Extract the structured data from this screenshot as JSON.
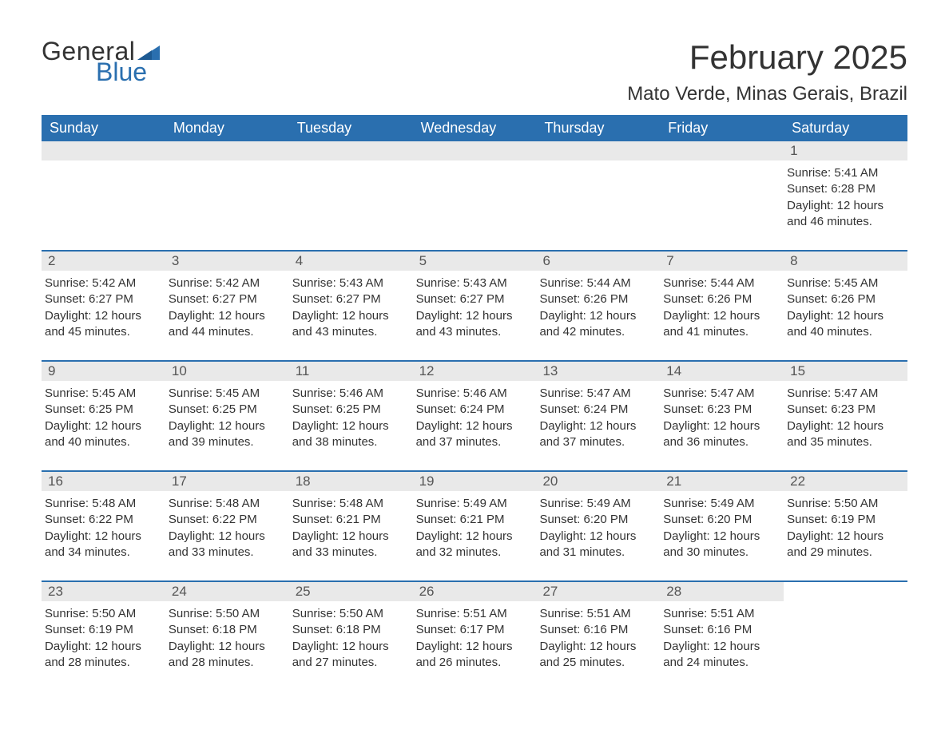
{
  "logo": {
    "text_general": "General",
    "text_blue": "Blue",
    "flag_color": "#2a6faf"
  },
  "title": "February 2025",
  "location": "Mato Verde, Minas Gerais, Brazil",
  "colors": {
    "header_bg": "#2a6faf",
    "header_text": "#ffffff",
    "daynum_bg": "#e9e9e9",
    "week_border": "#2a6faf",
    "body_text": "#333333",
    "background": "#ffffff"
  },
  "fonts": {
    "title_size_pt": 32,
    "location_size_pt": 18,
    "dayheader_size_pt": 14,
    "body_size_pt": 11
  },
  "day_headers": [
    "Sunday",
    "Monday",
    "Tuesday",
    "Wednesday",
    "Thursday",
    "Friday",
    "Saturday"
  ],
  "weeks": [
    [
      {
        "empty": true
      },
      {
        "empty": true
      },
      {
        "empty": true
      },
      {
        "empty": true
      },
      {
        "empty": true
      },
      {
        "empty": true
      },
      {
        "num": "1",
        "sunrise": "Sunrise: 5:41 AM",
        "sunset": "Sunset: 6:28 PM",
        "daylight1": "Daylight: 12 hours",
        "daylight2": "and 46 minutes."
      }
    ],
    [
      {
        "num": "2",
        "sunrise": "Sunrise: 5:42 AM",
        "sunset": "Sunset: 6:27 PM",
        "daylight1": "Daylight: 12 hours",
        "daylight2": "and 45 minutes."
      },
      {
        "num": "3",
        "sunrise": "Sunrise: 5:42 AM",
        "sunset": "Sunset: 6:27 PM",
        "daylight1": "Daylight: 12 hours",
        "daylight2": "and 44 minutes."
      },
      {
        "num": "4",
        "sunrise": "Sunrise: 5:43 AM",
        "sunset": "Sunset: 6:27 PM",
        "daylight1": "Daylight: 12 hours",
        "daylight2": "and 43 minutes."
      },
      {
        "num": "5",
        "sunrise": "Sunrise: 5:43 AM",
        "sunset": "Sunset: 6:27 PM",
        "daylight1": "Daylight: 12 hours",
        "daylight2": "and 43 minutes."
      },
      {
        "num": "6",
        "sunrise": "Sunrise: 5:44 AM",
        "sunset": "Sunset: 6:26 PM",
        "daylight1": "Daylight: 12 hours",
        "daylight2": "and 42 minutes."
      },
      {
        "num": "7",
        "sunrise": "Sunrise: 5:44 AM",
        "sunset": "Sunset: 6:26 PM",
        "daylight1": "Daylight: 12 hours",
        "daylight2": "and 41 minutes."
      },
      {
        "num": "8",
        "sunrise": "Sunrise: 5:45 AM",
        "sunset": "Sunset: 6:26 PM",
        "daylight1": "Daylight: 12 hours",
        "daylight2": "and 40 minutes."
      }
    ],
    [
      {
        "num": "9",
        "sunrise": "Sunrise: 5:45 AM",
        "sunset": "Sunset: 6:25 PM",
        "daylight1": "Daylight: 12 hours",
        "daylight2": "and 40 minutes."
      },
      {
        "num": "10",
        "sunrise": "Sunrise: 5:45 AM",
        "sunset": "Sunset: 6:25 PM",
        "daylight1": "Daylight: 12 hours",
        "daylight2": "and 39 minutes."
      },
      {
        "num": "11",
        "sunrise": "Sunrise: 5:46 AM",
        "sunset": "Sunset: 6:25 PM",
        "daylight1": "Daylight: 12 hours",
        "daylight2": "and 38 minutes."
      },
      {
        "num": "12",
        "sunrise": "Sunrise: 5:46 AM",
        "sunset": "Sunset: 6:24 PM",
        "daylight1": "Daylight: 12 hours",
        "daylight2": "and 37 minutes."
      },
      {
        "num": "13",
        "sunrise": "Sunrise: 5:47 AM",
        "sunset": "Sunset: 6:24 PM",
        "daylight1": "Daylight: 12 hours",
        "daylight2": "and 37 minutes."
      },
      {
        "num": "14",
        "sunrise": "Sunrise: 5:47 AM",
        "sunset": "Sunset: 6:23 PM",
        "daylight1": "Daylight: 12 hours",
        "daylight2": "and 36 minutes."
      },
      {
        "num": "15",
        "sunrise": "Sunrise: 5:47 AM",
        "sunset": "Sunset: 6:23 PM",
        "daylight1": "Daylight: 12 hours",
        "daylight2": "and 35 minutes."
      }
    ],
    [
      {
        "num": "16",
        "sunrise": "Sunrise: 5:48 AM",
        "sunset": "Sunset: 6:22 PM",
        "daylight1": "Daylight: 12 hours",
        "daylight2": "and 34 minutes."
      },
      {
        "num": "17",
        "sunrise": "Sunrise: 5:48 AM",
        "sunset": "Sunset: 6:22 PM",
        "daylight1": "Daylight: 12 hours",
        "daylight2": "and 33 minutes."
      },
      {
        "num": "18",
        "sunrise": "Sunrise: 5:48 AM",
        "sunset": "Sunset: 6:21 PM",
        "daylight1": "Daylight: 12 hours",
        "daylight2": "and 33 minutes."
      },
      {
        "num": "19",
        "sunrise": "Sunrise: 5:49 AM",
        "sunset": "Sunset: 6:21 PM",
        "daylight1": "Daylight: 12 hours",
        "daylight2": "and 32 minutes."
      },
      {
        "num": "20",
        "sunrise": "Sunrise: 5:49 AM",
        "sunset": "Sunset: 6:20 PM",
        "daylight1": "Daylight: 12 hours",
        "daylight2": "and 31 minutes."
      },
      {
        "num": "21",
        "sunrise": "Sunrise: 5:49 AM",
        "sunset": "Sunset: 6:20 PM",
        "daylight1": "Daylight: 12 hours",
        "daylight2": "and 30 minutes."
      },
      {
        "num": "22",
        "sunrise": "Sunrise: 5:50 AM",
        "sunset": "Sunset: 6:19 PM",
        "daylight1": "Daylight: 12 hours",
        "daylight2": "and 29 minutes."
      }
    ],
    [
      {
        "num": "23",
        "sunrise": "Sunrise: 5:50 AM",
        "sunset": "Sunset: 6:19 PM",
        "daylight1": "Daylight: 12 hours",
        "daylight2": "and 28 minutes."
      },
      {
        "num": "24",
        "sunrise": "Sunrise: 5:50 AM",
        "sunset": "Sunset: 6:18 PM",
        "daylight1": "Daylight: 12 hours",
        "daylight2": "and 28 minutes."
      },
      {
        "num": "25",
        "sunrise": "Sunrise: 5:50 AM",
        "sunset": "Sunset: 6:18 PM",
        "daylight1": "Daylight: 12 hours",
        "daylight2": "and 27 minutes."
      },
      {
        "num": "26",
        "sunrise": "Sunrise: 5:51 AM",
        "sunset": "Sunset: 6:17 PM",
        "daylight1": "Daylight: 12 hours",
        "daylight2": "and 26 minutes."
      },
      {
        "num": "27",
        "sunrise": "Sunrise: 5:51 AM",
        "sunset": "Sunset: 6:16 PM",
        "daylight1": "Daylight: 12 hours",
        "daylight2": "and 25 minutes."
      },
      {
        "num": "28",
        "sunrise": "Sunrise: 5:51 AM",
        "sunset": "Sunset: 6:16 PM",
        "daylight1": "Daylight: 12 hours",
        "daylight2": "and 24 minutes."
      },
      {
        "empty": true,
        "no_bar": true
      }
    ]
  ]
}
